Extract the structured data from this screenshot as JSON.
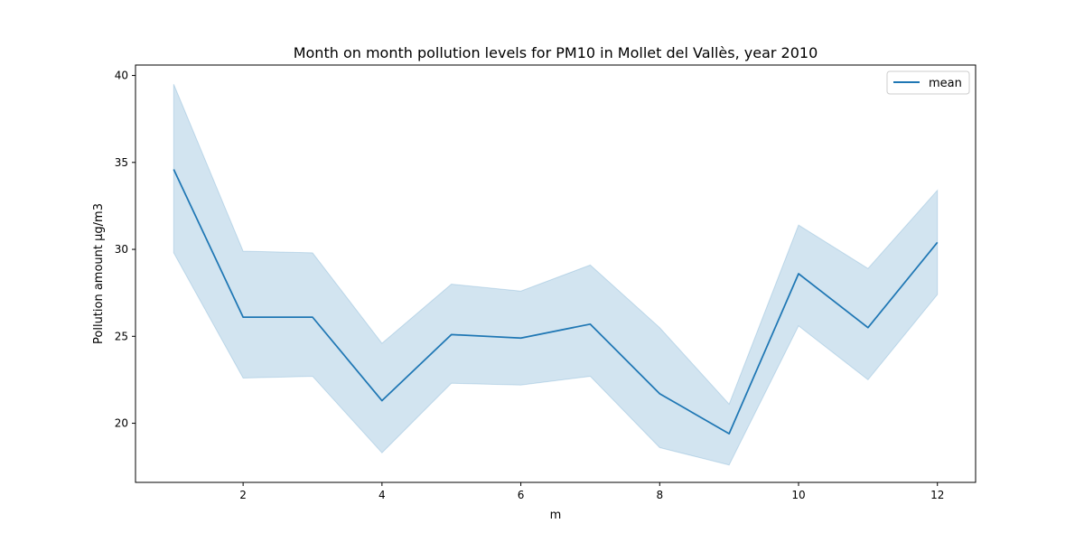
{
  "colors": {
    "line": "#1f77b4",
    "band": "#1f77b4"
  },
  "chart_data": {
    "type": "line",
    "title": "Month on month pollution levels for PM10 in Mollet del Vallès, year 2010",
    "xlabel": "m",
    "ylabel": "Pollution amount µg/m3",
    "xlim": [
      0.45,
      12.55
    ],
    "ylim": [
      16.6,
      40.6
    ],
    "xticks": [
      2,
      4,
      6,
      8,
      10,
      12
    ],
    "yticks": [
      20,
      25,
      30,
      35,
      40
    ],
    "grid": false,
    "legend": {
      "position": "top-right",
      "entries": [
        "mean"
      ]
    },
    "series": [
      {
        "name": "mean",
        "x": [
          1,
          2,
          3,
          4,
          5,
          6,
          7,
          8,
          9,
          10,
          11,
          12
        ],
        "y": [
          34.6,
          26.1,
          26.1,
          21.3,
          25.1,
          24.9,
          25.7,
          21.7,
          19.4,
          28.6,
          25.5,
          30.4
        ],
        "ci_lower": [
          29.8,
          22.6,
          22.7,
          18.3,
          22.3,
          22.2,
          22.7,
          18.6,
          17.6,
          25.6,
          22.5,
          27.4
        ],
        "ci_upper": [
          39.5,
          29.9,
          29.8,
          24.6,
          28.0,
          27.6,
          29.1,
          25.5,
          21.1,
          31.4,
          28.9,
          33.4
        ]
      }
    ]
  }
}
